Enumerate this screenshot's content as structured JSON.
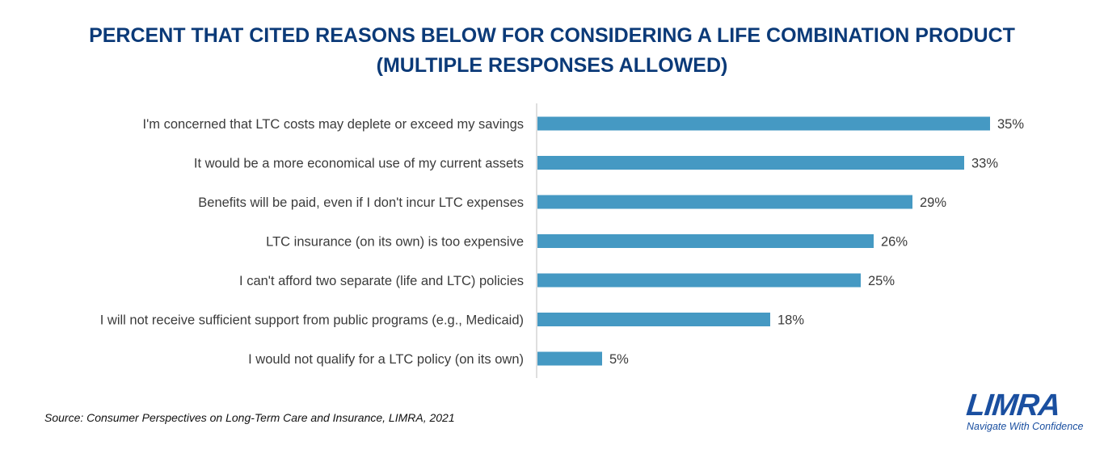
{
  "chart_data": {
    "type": "bar",
    "orientation": "horizontal",
    "title_lines": [
      "PERCENT THAT CITED REASONS BELOW FOR CONSIDERING A LIFE COMBINATION PRODUCT",
      "(MULTIPLE RESPONSES ALLOWED)"
    ],
    "categories": [
      "I'm concerned that LTC costs may deplete or exceed my savings",
      "It would be a more economical use of my current assets",
      "Benefits will be paid, even if I don't incur LTC expenses",
      "LTC insurance (on its own) is too expensive",
      "I can't afford two separate (life and LTC) policies",
      "I will not receive sufficient support from public programs (e.g., Medicaid)",
      "I would not qualify for a LTC policy (on its own)"
    ],
    "values": [
      35,
      33,
      29,
      26,
      25,
      18,
      5
    ],
    "value_labels": [
      "35%",
      "33%",
      "29%",
      "26%",
      "25%",
      "18%",
      "5%"
    ],
    "unit": "%",
    "xlim": [
      0,
      40
    ],
    "grid": false,
    "bar_color": "#4599c3"
  },
  "source": "Source: Consumer Perspectives on Long-Term Care and Insurance, LIMRA, 2021",
  "logo": {
    "wordmark": "LIMRA",
    "tagline": "Navigate With Confidence"
  }
}
